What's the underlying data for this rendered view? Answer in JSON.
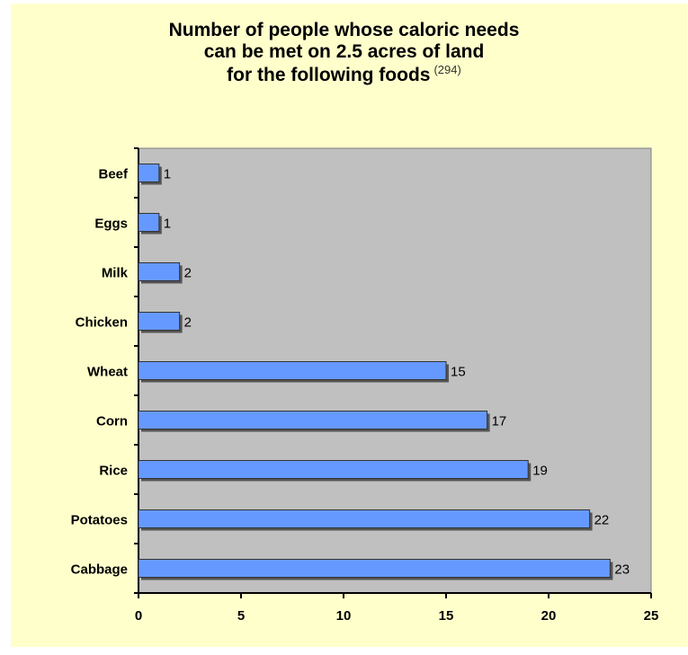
{
  "chart_data": {
    "type": "bar",
    "orientation": "horizontal",
    "title": {
      "line1": "Number of people whose caloric needs",
      "line2": "can be met on 2.5 acres of land",
      "line3": "for the following foods",
      "reference": "(294)"
    },
    "categories": [
      "Beef",
      "Eggs",
      "Milk",
      "Chicken",
      "Wheat",
      "Corn",
      "Rice",
      "Potatoes",
      "Cabbage"
    ],
    "values": [
      1,
      1,
      2,
      2,
      15,
      17,
      19,
      22,
      23
    ],
    "data_labels": [
      "1",
      "1",
      "2",
      "2",
      "15",
      "17",
      "19",
      "22",
      "23"
    ],
    "xlim": [
      0,
      25
    ],
    "x_ticks": [
      "0",
      "5",
      "10",
      "15",
      "20",
      "25"
    ],
    "xlabel": "",
    "ylabel": "",
    "grid": false,
    "legend": "none",
    "colors": {
      "frame_background": "#ffffcc",
      "plot_background": "#c0c0c0",
      "bar_fill": "#6699ff",
      "bar_shadow": "#555555"
    }
  }
}
